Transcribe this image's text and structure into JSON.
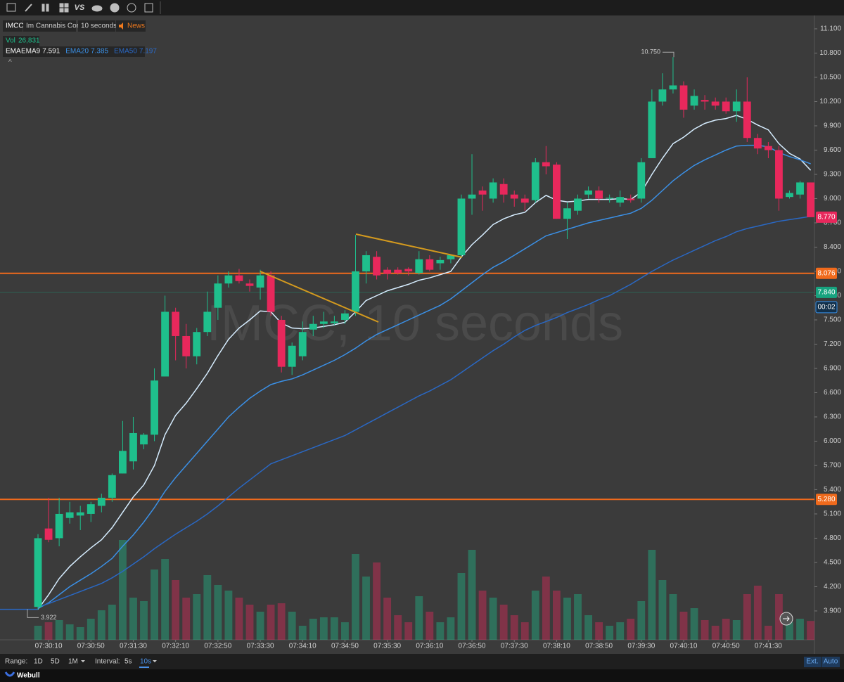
{
  "toolbar": {
    "vs": "VS"
  },
  "chart_data": {
    "type": "candlestick",
    "symbol": "IMCC",
    "company": "Im Cannabis Corp",
    "interval_label": "10 seconds",
    "news": "News",
    "watermark": "IMCC, 10 seconds",
    "volume_label": "Vol",
    "volume_value": "26,831",
    "ema_label": "EMA",
    "up_color": "#1fbf8c",
    "down_color": "#e8285c",
    "open": [
      3.95,
      4.92,
      4.8,
      5.05,
      5.08,
      5.1,
      5.2,
      5.3,
      5.6,
      5.75,
      5.96,
      6.08,
      6.8,
      7.6,
      7.3,
      7.05,
      7.35,
      7.65,
      7.95,
      8.05,
      7.95,
      7.9,
      8.05,
      7.5,
      6.92,
      7.05,
      7.38,
      7.45,
      7.46,
      7.5,
      7.6,
      8.1,
      8.28,
      8.12,
      8.12,
      8.13,
      8.08,
      8.25,
      8.2,
      8.25,
      8.3,
      9.0,
      9.1,
      9.0,
      9.18,
      9.05,
      9.0,
      8.98,
      9.45,
      9.42,
      8.75,
      8.85,
      9.05,
      9.1,
      9.0,
      8.95,
      9.0,
      9.0,
      9.5,
      10.2,
      10.35,
      10.4,
      10.15,
      10.22,
      10.2,
      10.2,
      10.08,
      10.2,
      9.75,
      9.65,
      9.6,
      9.02,
      9.05,
      9.2
    ],
    "high": [
      4.85,
      5.3,
      5.3,
      5.25,
      5.2,
      5.25,
      5.35,
      5.6,
      6.25,
      6.3,
      6.1,
      6.9,
      7.8,
      7.65,
      7.45,
      7.4,
      7.85,
      8.05,
      8.1,
      8.13,
      8.0,
      8.12,
      8.1,
      7.55,
      7.22,
      7.48,
      7.55,
      7.6,
      7.55,
      7.62,
      8.55,
      8.35,
      8.35,
      8.15,
      8.15,
      8.15,
      8.35,
      8.3,
      8.28,
      8.3,
      9.05,
      9.55,
      9.15,
      9.25,
      9.25,
      9.1,
      9.05,
      9.5,
      9.65,
      9.45,
      8.95,
      9.05,
      9.15,
      9.15,
      9.05,
      9.1,
      9.05,
      9.5,
      10.35,
      10.55,
      10.75,
      10.45,
      10.35,
      10.28,
      10.25,
      10.25,
      10.35,
      10.5,
      9.8,
      9.7,
      9.65,
      9.1,
      9.22,
      9.2
    ],
    "low": [
      3.92,
      4.75,
      4.7,
      4.98,
      4.9,
      5.0,
      5.12,
      5.25,
      5.6,
      5.65,
      5.9,
      6.0,
      6.8,
      7.0,
      6.9,
      6.95,
      7.3,
      7.5,
      7.9,
      7.95,
      7.85,
      7.75,
      7.55,
      6.85,
      6.82,
      7.0,
      7.3,
      7.4,
      7.44,
      7.45,
      7.55,
      7.95,
      8.0,
      8.0,
      8.06,
      8.05,
      8.06,
      8.1,
      8.12,
      8.2,
      8.28,
      8.8,
      8.85,
      8.95,
      8.95,
      8.9,
      8.85,
      8.95,
      9.3,
      8.75,
      8.5,
      8.8,
      9.0,
      8.95,
      8.95,
      8.9,
      8.95,
      8.95,
      9.5,
      10.15,
      10.3,
      10.0,
      10.1,
      10.1,
      10.1,
      10.05,
      9.95,
      9.7,
      9.55,
      9.5,
      8.85,
      9.0,
      9.0,
      8.77
    ],
    "close": [
      4.8,
      4.78,
      5.1,
      5.12,
      5.12,
      5.22,
      5.3,
      5.58,
      5.88,
      6.1,
      6.08,
      6.75,
      7.6,
      7.3,
      7.05,
      7.35,
      7.6,
      7.95,
      8.05,
      7.98,
      7.92,
      8.05,
      7.6,
      6.92,
      7.18,
      7.35,
      7.45,
      7.48,
      7.48,
      7.58,
      8.1,
      8.3,
      8.05,
      8.07,
      8.08,
      8.1,
      8.25,
      8.12,
      8.24,
      8.3,
      9.0,
      9.05,
      9.05,
      9.2,
      9.05,
      9.0,
      8.95,
      9.45,
      9.4,
      8.75,
      8.88,
      9.0,
      9.1,
      9.0,
      9.01,
      9.02,
      8.98,
      9.45,
      10.2,
      10.35,
      10.4,
      10.1,
      10.27,
      10.2,
      10.15,
      10.08,
      10.2,
      9.75,
      9.62,
      9.6,
      9.0,
      9.07,
      9.2,
      8.77
    ],
    "volume": [
      20000,
      25000,
      28000,
      22000,
      18000,
      30000,
      42000,
      50000,
      142000,
      60000,
      55000,
      100000,
      115000,
      85000,
      60000,
      65000,
      92000,
      78000,
      70000,
      60000,
      50000,
      40000,
      50000,
      52000,
      40000,
      20000,
      30000,
      32000,
      32000,
      25000,
      122000,
      90000,
      110000,
      60000,
      35000,
      25000,
      62000,
      40000,
      25000,
      32000,
      95000,
      128000,
      70000,
      60000,
      50000,
      35000,
      25000,
      70000,
      90000,
      70000,
      60000,
      65000,
      35000,
      25000,
      20000,
      25000,
      30000,
      55000,
      128000,
      85000,
      65000,
      40000,
      45000,
      28000,
      20000,
      30000,
      28000,
      65000,
      77000,
      20000,
      65000,
      25000,
      30000,
      26831
    ],
    "vol_lim": [
      0,
      888000
    ],
    "series": [
      {
        "name": "EMA9",
        "value": 7.591,
        "color": "#d6edff",
        "values": [
          3.92,
          4.1,
          4.3,
          4.45,
          4.57,
          4.68,
          4.78,
          4.93,
          5.12,
          5.31,
          5.46,
          5.7,
          6.08,
          6.32,
          6.47,
          6.65,
          6.84,
          7.06,
          7.26,
          7.4,
          7.5,
          7.61,
          7.6,
          7.46,
          7.4,
          7.39,
          7.4,
          7.42,
          7.44,
          7.47,
          7.6,
          7.74,
          7.8,
          7.86,
          7.9,
          7.94,
          7.99,
          8.02,
          8.06,
          8.1,
          8.28,
          8.43,
          8.55,
          8.68,
          8.75,
          8.8,
          8.83,
          8.95,
          9.04,
          8.98,
          8.96,
          8.97,
          8.99,
          8.99,
          8.99,
          9.0,
          8.99,
          9.08,
          9.3,
          9.5,
          9.68,
          9.76,
          9.86,
          9.93,
          9.97,
          9.99,
          10.03,
          9.98,
          9.91,
          9.85,
          9.68,
          9.56,
          9.49,
          9.35
        ]
      },
      {
        "name": "EMA20",
        "value": 7.385,
        "color": "#3b90e6",
        "values": [
          3.93,
          4.0,
          4.1,
          4.2,
          4.28,
          4.36,
          4.45,
          4.55,
          4.7,
          4.84,
          5.0,
          5.18,
          5.38,
          5.55,
          5.7,
          5.85,
          6.0,
          6.15,
          6.3,
          6.42,
          6.53,
          6.62,
          6.7,
          6.74,
          6.77,
          6.82,
          6.88,
          6.94,
          7.0,
          7.07,
          7.15,
          7.24,
          7.32,
          7.38,
          7.44,
          7.5,
          7.56,
          7.62,
          7.68,
          7.76,
          7.86,
          7.96,
          8.06,
          8.15,
          8.22,
          8.3,
          8.38,
          8.46,
          8.54,
          8.58,
          8.62,
          8.66,
          8.7,
          8.73,
          8.76,
          8.79,
          8.82,
          8.88,
          8.98,
          9.1,
          9.22,
          9.32,
          9.41,
          9.48,
          9.54,
          9.6,
          9.65,
          9.66,
          9.66,
          9.64,
          9.57,
          9.52,
          9.48,
          9.43
        ]
      },
      {
        "name": "EMA50",
        "value": 7.197,
        "color": "#2a68c4",
        "values": [
          3.95,
          3.99,
          4.04,
          4.09,
          4.14,
          4.19,
          4.24,
          4.31,
          4.39,
          4.48,
          4.57,
          4.67,
          4.76,
          4.85,
          4.93,
          5.01,
          5.1,
          5.2,
          5.31,
          5.42,
          5.52,
          5.62,
          5.72,
          5.77,
          5.82,
          5.87,
          5.92,
          5.97,
          6.02,
          6.07,
          6.14,
          6.21,
          6.28,
          6.35,
          6.42,
          6.49,
          6.56,
          6.62,
          6.69,
          6.76,
          6.85,
          6.94,
          7.03,
          7.12,
          7.2,
          7.29,
          7.37,
          7.43,
          7.48,
          7.53,
          7.59,
          7.64,
          7.69,
          7.75,
          7.8,
          7.87,
          7.94,
          8.02,
          8.1,
          8.17,
          8.24,
          8.3,
          8.36,
          8.42,
          8.48,
          8.53,
          8.59,
          8.63,
          8.66,
          8.69,
          8.72,
          8.74,
          8.76,
          8.78
        ]
      }
    ],
    "xlim": [
      -3.59,
      73.36
    ],
    "xticks": [
      {
        "value": 1,
        "label": "07:30:10"
      },
      {
        "value": 5,
        "label": "07:30:50"
      },
      {
        "value": 9,
        "label": "07:31:30"
      },
      {
        "value": 13,
        "label": "07:32:10"
      },
      {
        "value": 17,
        "label": "07:32:50"
      },
      {
        "value": 21,
        "label": "07:33:30"
      },
      {
        "value": 25,
        "label": "07:34:10"
      },
      {
        "value": 29,
        "label": "07:34:50"
      },
      {
        "value": 33,
        "label": "07:35:30"
      },
      {
        "value": 37,
        "label": "07:36:10"
      },
      {
        "value": 41,
        "label": "07:36:50"
      },
      {
        "value": 45,
        "label": "07:37:30"
      },
      {
        "value": 49,
        "label": "07:38:10"
      },
      {
        "value": 53,
        "label": "07:38:50"
      },
      {
        "value": 57,
        "label": "07:39:30"
      },
      {
        "value": 61,
        "label": "07:40:10"
      },
      {
        "value": 65,
        "label": "07:40:50"
      },
      {
        "value": 69,
        "label": "07:41:30"
      }
    ],
    "ylim": [
      3.543,
      11.265
    ],
    "yticks": [
      {
        "value": 11.1,
        "label": "11.100"
      },
      {
        "value": 10.8,
        "label": "10.800"
      },
      {
        "value": 10.5,
        "label": "10.500"
      },
      {
        "value": 10.2,
        "label": "10.200"
      },
      {
        "value": 9.9,
        "label": "9.900"
      },
      {
        "value": 9.6,
        "label": "9.600"
      },
      {
        "value": 9.3,
        "label": "9.300"
      },
      {
        "value": 9.0,
        "label": "9.000"
      },
      {
        "value": 8.7,
        "label": "8.700"
      },
      {
        "value": 8.4,
        "label": "8.400"
      },
      {
        "value": 8.1,
        "label": "8.100"
      },
      {
        "value": 7.8,
        "label": "7.800"
      },
      {
        "value": 7.5,
        "label": "7.500"
      },
      {
        "value": 7.2,
        "label": "7.200"
      },
      {
        "value": 6.9,
        "label": "6.900"
      },
      {
        "value": 6.6,
        "label": "6.600"
      },
      {
        "value": 6.3,
        "label": "6.300"
      },
      {
        "value": 6.0,
        "label": "6.000"
      },
      {
        "value": 5.7,
        "label": "5.700"
      },
      {
        "value": 5.4,
        "label": "5.400"
      },
      {
        "value": 5.1,
        "label": "5.100"
      },
      {
        "value": 4.8,
        "label": "4.800"
      },
      {
        "value": 4.5,
        "label": "4.500"
      },
      {
        "value": 4.2,
        "label": "4.200"
      },
      {
        "value": 3.9,
        "label": "3.900"
      }
    ],
    "high_marker": {
      "value": 10.75,
      "label": "10.750"
    },
    "low_marker": {
      "value": 3.922,
      "label": "3.922"
    },
    "hlines": [
      {
        "value": 8.076,
        "label": "8.076",
        "color": "#f06a1c"
      },
      {
        "value": 5.28,
        "label": "5.280",
        "color": "#f06a1c"
      }
    ],
    "last_price": {
      "value": 8.77,
      "label": "8.770",
      "color": "#e8285c"
    },
    "other_price": {
      "value": 7.84,
      "label": "7.840",
      "color": "#17a37f"
    },
    "countdown": "00:02"
  },
  "bottom": {
    "range_label": "Range:",
    "ranges": [
      "1D",
      "5D",
      "1M"
    ],
    "interval_label": "Interval:",
    "intervals": [
      "5s",
      "10s"
    ],
    "ext": "Ext.",
    "auto": "Auto",
    "brand": "Webull"
  }
}
